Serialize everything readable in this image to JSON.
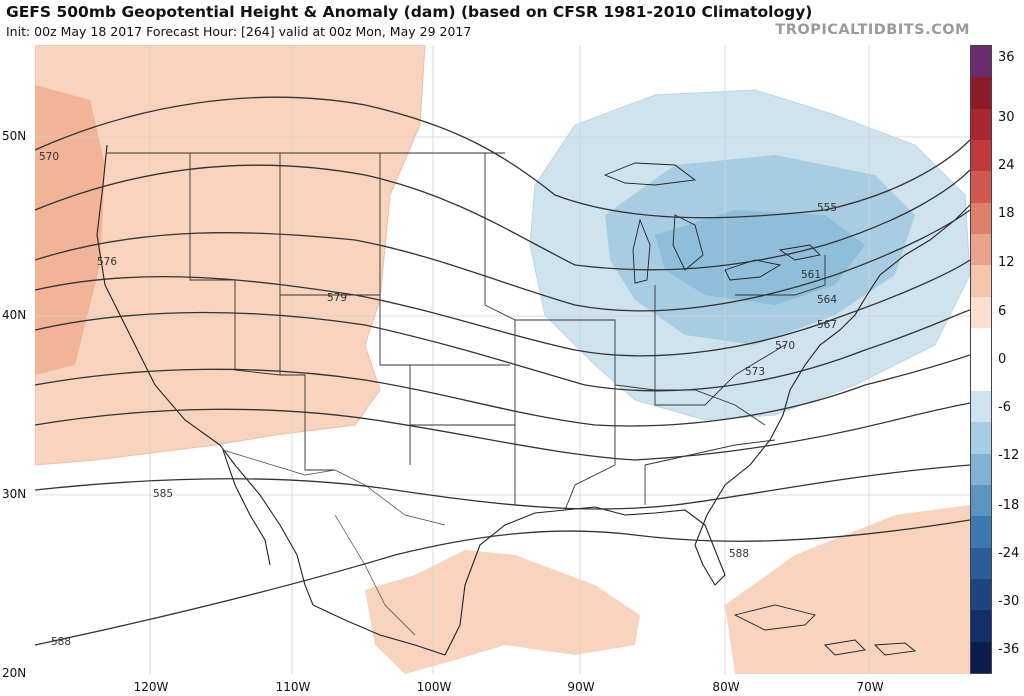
{
  "header": {
    "title": "GEFS 500mb Geopotential Height & Anomaly (dam) (based on CFSR 1981-2010 Climatology)",
    "subtitle": "Init: 00z May 18 2017   Forecast Hour: [264]   valid at 00z Mon, May 29 2017",
    "brand": "TROPICALTIDBITS.COM"
  },
  "map": {
    "lat_labels": [
      "50N",
      "40N",
      "30N",
      "20N"
    ],
    "lon_labels": [
      "120W",
      "110W",
      "100W",
      "90W",
      "80W",
      "70W"
    ],
    "contour_labels": [
      "570",
      "576",
      "579",
      "585",
      "588",
      "588",
      "555",
      "561",
      "564",
      "567",
      "570",
      "573"
    ],
    "anomaly_regions": {
      "positive": [
        "western-us-ridge",
        "pacific-northwest-core",
        "gulf-of-mexico",
        "caribbean-atlantic"
      ],
      "negative": [
        "great-lakes-northeast-trough",
        "northeast-core"
      ]
    }
  },
  "colorbar": {
    "labels": [
      "36",
      "30",
      "24",
      "18",
      "12",
      "6",
      "0",
      "-6",
      "-12",
      "-18",
      "-24",
      "-30",
      "-36"
    ],
    "colors": [
      "#6a2c6e",
      "#8e1b2a",
      "#a82832",
      "#c0393d",
      "#d0594f",
      "#dc7f6b",
      "#e9a28c",
      "#f4c4ad",
      "#fbe0d2",
      "#ffffff",
      "#ffffff",
      "#cfe3ef",
      "#a8cce2",
      "#7fb2d3",
      "#5a95c1",
      "#3d79ae",
      "#2b5e97",
      "#1e4580",
      "#142f67",
      "#0c1d4d"
    ]
  }
}
